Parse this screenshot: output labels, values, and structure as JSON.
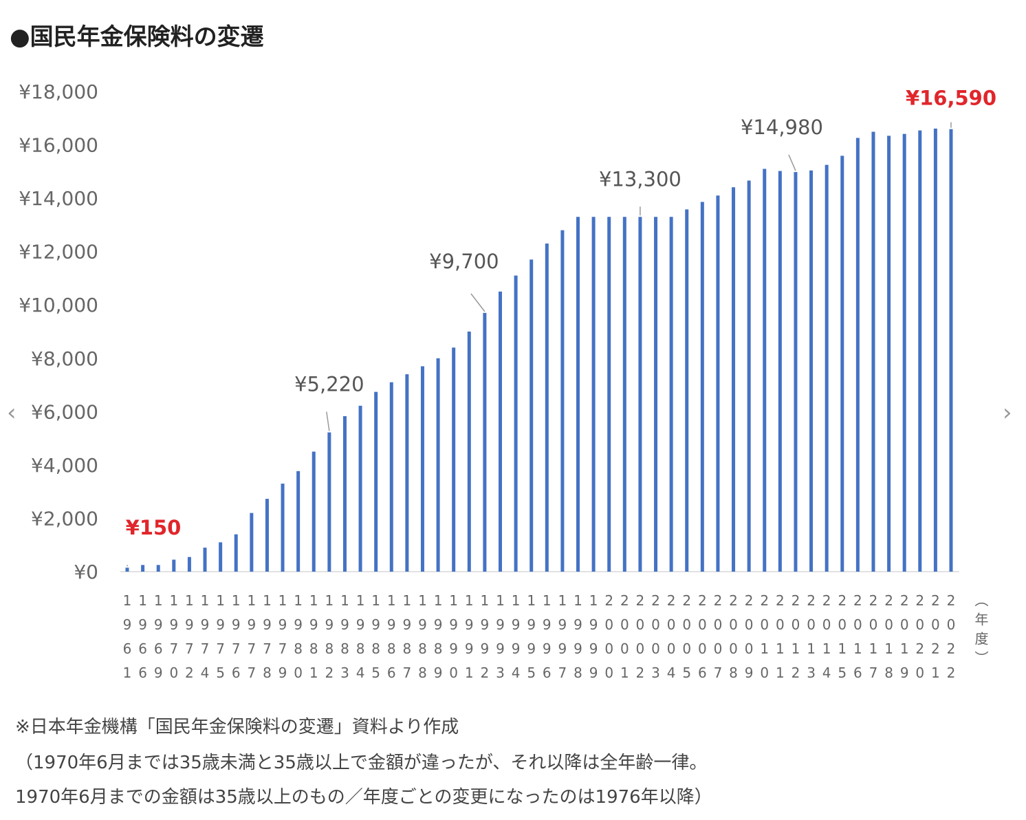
{
  "chart_data": {
    "type": "bar",
    "title": "●国民年金保険料の変遷",
    "xlabel": "（年度）",
    "ylabel": "",
    "ylim": [
      0,
      18000
    ],
    "yticks": [
      0,
      2000,
      4000,
      6000,
      8000,
      10000,
      12000,
      14000,
      16000,
      18000
    ],
    "ytick_labels": [
      "¥0",
      "¥2,000",
      "¥4,000",
      "¥6,000",
      "¥8,000",
      "¥10,000",
      "¥12,000",
      "¥14,000",
      "¥16,000",
      "¥18,000"
    ],
    "categories": [
      "1961",
      "1966",
      "1969",
      "1970",
      "1972",
      "1974",
      "1975",
      "1976",
      "1977",
      "1978",
      "1979",
      "1980",
      "1981",
      "1982",
      "1983",
      "1984",
      "1985",
      "1986",
      "1987",
      "1988",
      "1989",
      "1990",
      "1991",
      "1992",
      "1993",
      "1994",
      "1995",
      "1996",
      "1997",
      "1998",
      "1999",
      "2000",
      "2001",
      "2002",
      "2003",
      "2004",
      "2005",
      "2006",
      "2007",
      "2008",
      "2009",
      "2010",
      "2011",
      "2012",
      "2013",
      "2014",
      "2015",
      "2016",
      "2017",
      "2018",
      "2019",
      "2020",
      "2021",
      "2022"
    ],
    "values": [
      150,
      250,
      250,
      450,
      550,
      900,
      1100,
      1400,
      2200,
      2730,
      3300,
      3770,
      4500,
      5220,
      5830,
      6220,
      6740,
      7100,
      7400,
      7700,
      8000,
      8400,
      9000,
      9700,
      10500,
      11100,
      11700,
      12300,
      12800,
      13300,
      13300,
      13300,
      13300,
      13300,
      13300,
      13300,
      13580,
      13860,
      14100,
      14410,
      14660,
      15100,
      15020,
      14980,
      15040,
      15250,
      15590,
      16260,
      16490,
      16340,
      16410,
      16540,
      16610,
      16590
    ],
    "bar_color": "#4472c4",
    "annotations": [
      {
        "category": "1961",
        "text": "¥150",
        "color": "#e0262b"
      },
      {
        "category": "1982",
        "text": "¥5,220",
        "color": "#555555"
      },
      {
        "category": "1992",
        "text": "¥9,700",
        "color": "#555555"
      },
      {
        "category": "2002",
        "text": "¥13,300",
        "color": "#555555"
      },
      {
        "category": "2012",
        "text": "¥14,980",
        "color": "#555555"
      },
      {
        "category": "2022",
        "text": "¥16,590",
        "color": "#e0262b"
      }
    ],
    "grid": false,
    "legend": "none"
  },
  "notes": [
    "※日本年金機構「国民年金保険料の変遷」資料より作成",
    "（1970年6月までは35歳未満と35歳以上で金額が違ったが、それ以降は全年齢一律。",
    "1970年6月までの金額は35歳以上のもの／年度ごとの変更になったのは1976年以降）"
  ],
  "nav": {
    "prev": "‹",
    "next": "›"
  }
}
